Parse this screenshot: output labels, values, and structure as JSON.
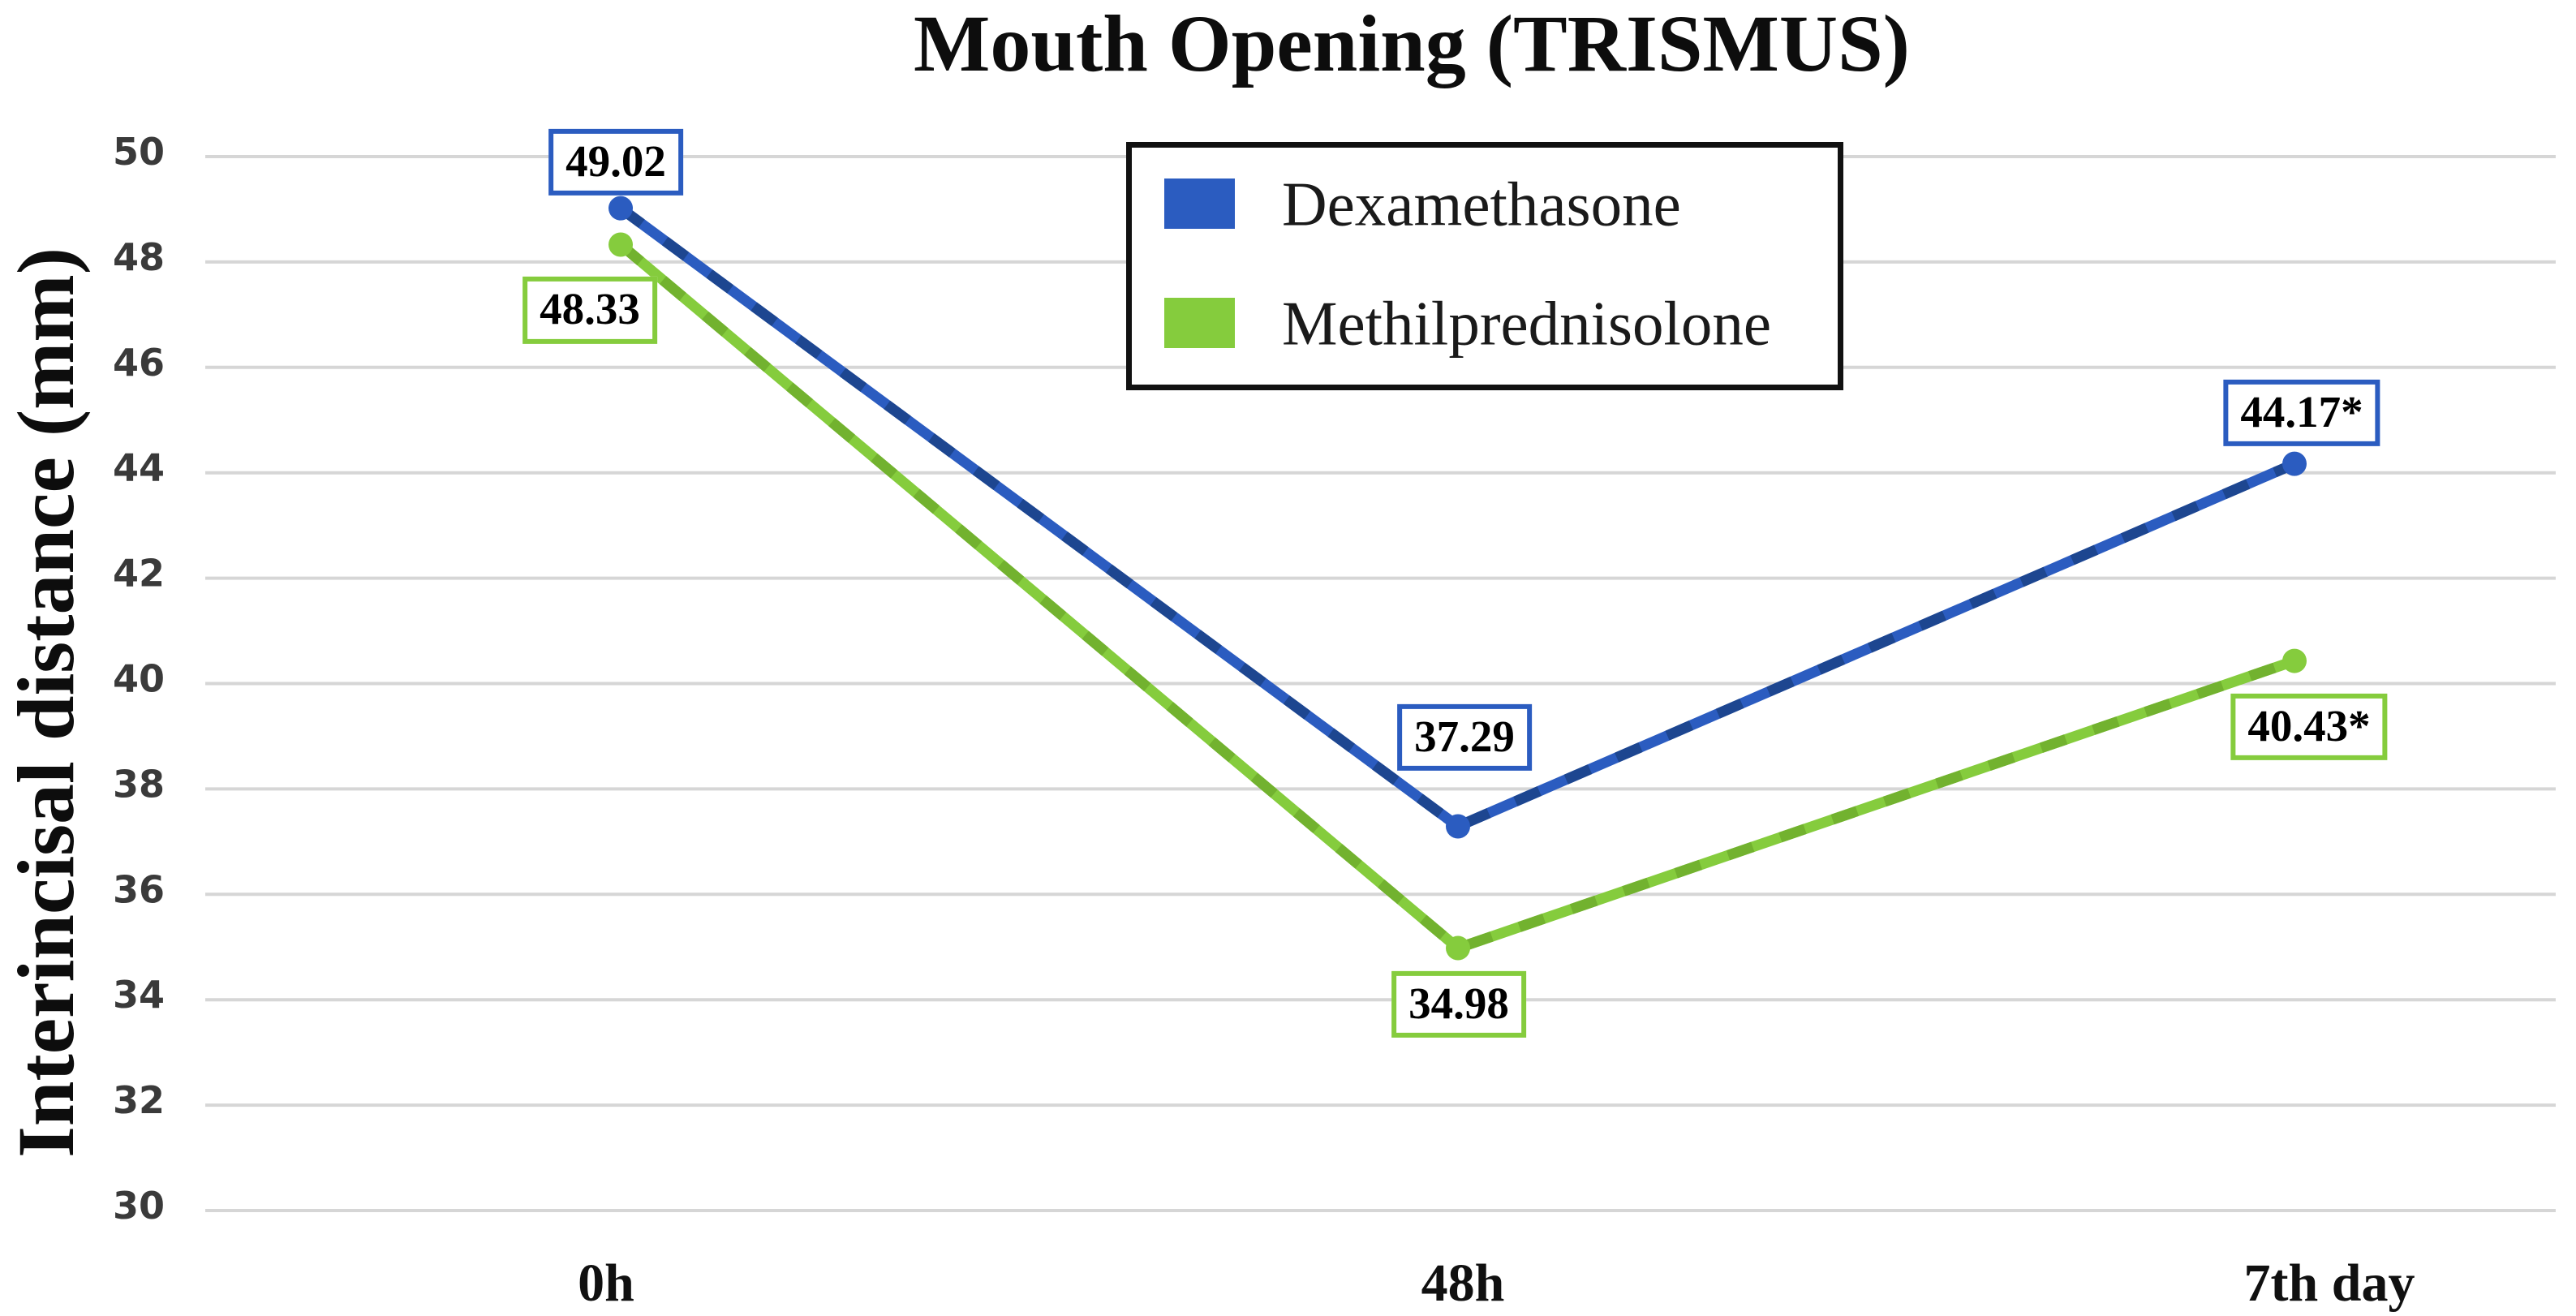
{
  "chart_data": {
    "type": "line",
    "title": "Mouth Opening (TRISMUS)",
    "ylabel": "Interincisal distance (mm)",
    "xlabel": "",
    "categories": [
      "0h",
      "48h",
      "7th day"
    ],
    "ylim": [
      30,
      50
    ],
    "ytick_interval": 2,
    "yticks": [
      50,
      48,
      46,
      44,
      42,
      40,
      38,
      36,
      34,
      32,
      30
    ],
    "grid": "horizontal",
    "legend": {
      "position": "top-center-inside",
      "entries": [
        "Dexamethasone",
        "Methilprednisolone"
      ]
    },
    "series": [
      {
        "name": "Dexamethasone",
        "color": "#2b5cc0",
        "values": [
          49.02,
          37.29,
          44.17
        ],
        "point_labels": [
          "49.02",
          "37.29",
          "44.17*"
        ]
      },
      {
        "name": "Methilprednisolone",
        "color": "#85cc3d",
        "values": [
          48.33,
          34.98,
          40.43
        ],
        "point_labels": [
          "48.33",
          "34.98",
          "40.43*"
        ]
      }
    ]
  },
  "colors": {
    "background": "#ffffff",
    "grid": "#d6d6d6",
    "tick_text": "#3a3a3a",
    "axis_text": "#101010",
    "legend_border": "#111111"
  }
}
